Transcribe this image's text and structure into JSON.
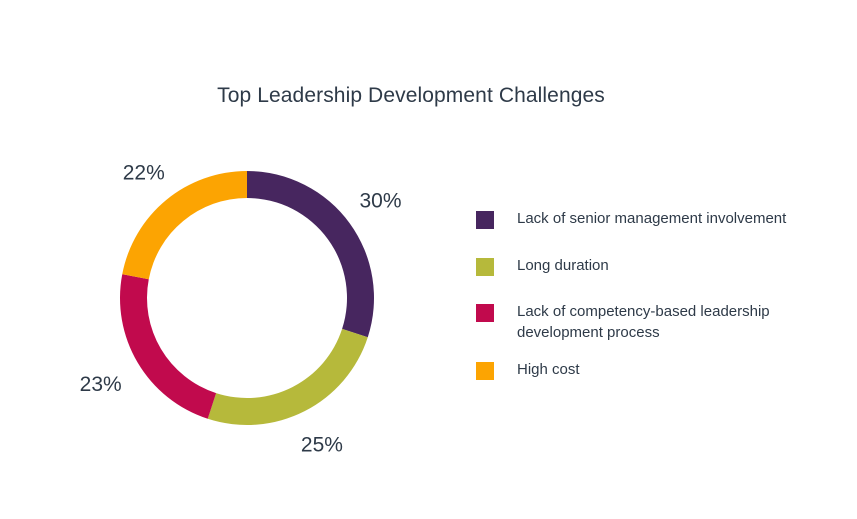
{
  "chart_data": {
    "type": "pie",
    "title": "Top Leadership Development Challenges",
    "categories": [
      "Lack of senior management involvement",
      "Long duration",
      "Lack of competency-based leadership development process",
      "High cost"
    ],
    "values": [
      30,
      25,
      23,
      22
    ],
    "value_labels": [
      "30%",
      "25%",
      "23%",
      "22%"
    ],
    "colors": [
      "#47265f",
      "#b6b93b",
      "#c10a4d",
      "#fca402"
    ],
    "legend_position": "right",
    "style": "donut"
  }
}
